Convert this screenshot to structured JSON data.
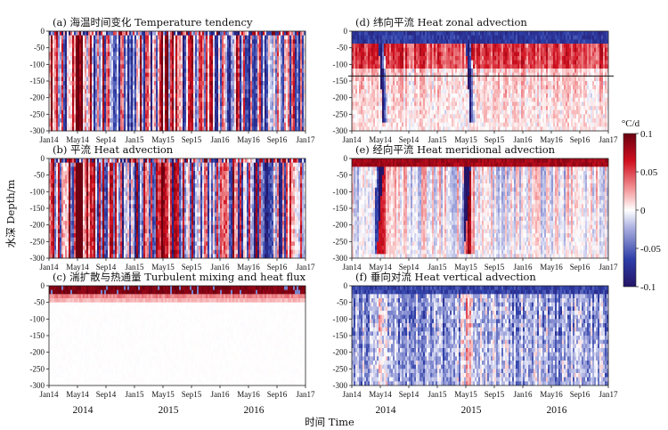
{
  "chart_data": {
    "type": "heatmap",
    "xlabel": "时间 Time",
    "ylabel": "水深 Depth/m",
    "x_ticks": [
      "Jan14",
      "May14",
      "Sep14",
      "Jan15",
      "May15",
      "Sep15",
      "Jan16",
      "May16",
      "Sep16",
      "Jan17"
    ],
    "y_ticks": [
      "0",
      "-50",
      "-100",
      "-150",
      "-200",
      "-250",
      "-300"
    ],
    "ylim": [
      -300,
      0
    ],
    "xlim": [
      "Jan14",
      "Jan17"
    ],
    "years": [
      "2014",
      "2015",
      "2016"
    ],
    "colorbar": {
      "label": "°C/d",
      "range": [
        -0.1,
        0.1
      ],
      "ticks": [
        "0.1",
        "0.05",
        "0",
        "-0.05",
        "-0.1"
      ],
      "colors": [
        "#2b1c7a",
        "#ffffff",
        "#b3001a"
      ]
    },
    "reference_line_depth": -135,
    "panels": [
      {
        "id": "a",
        "title": "(a) 海温时间变化 Temperature tendency"
      },
      {
        "id": "b",
        "title": "(b) 平流 Heat advection"
      },
      {
        "id": "c",
        "title": "(c) 湍扩散与热通量 Turbulent mixing and heat flux"
      },
      {
        "id": "d",
        "title": "(d) 纬向平流 Heat zonal advection"
      },
      {
        "id": "e",
        "title": "(e) 经向平流 Heat meridional advection"
      },
      {
        "id": "f",
        "title": "(f) 垂向对流 Heat vertical advection"
      }
    ]
  }
}
